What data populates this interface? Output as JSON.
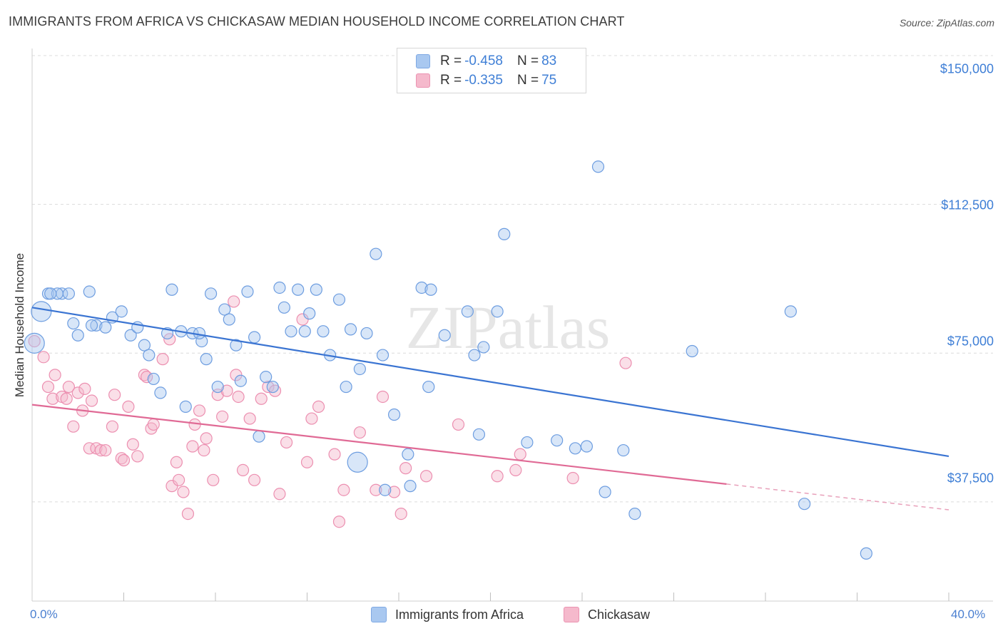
{
  "title": "IMMIGRANTS FROM AFRICA VS CHICKASAW MEDIAN HOUSEHOLD INCOME CORRELATION CHART",
  "source": "Source: ZipAtlas.com",
  "watermark": "ZIPatlas",
  "colors": {
    "blue": "#3a74d2",
    "pink": "#e06a95",
    "blue_fill": "#a9c8f0",
    "pink_fill": "#f5b9cc",
    "axis_text": "#3f7fd6"
  },
  "legend_top": [
    {
      "r_label": "R = ",
      "r_value": "-0.458",
      "n_label": "N = ",
      "n_value": "83",
      "color": "#a9c8f0"
    },
    {
      "r_label": "R = ",
      "r_value": "-0.335",
      "n_label": "N = ",
      "n_value": "75",
      "color": "#f5b9cc"
    }
  ],
  "chart_data": {
    "type": "scatter",
    "ylabel": "Median Household Income",
    "xlim": [
      0,
      40
    ],
    "ylim": [
      12500,
      150000
    ],
    "x_tick_labels": [
      "0.0%",
      "40.0%"
    ],
    "y_tick_labels": [
      "$37,500",
      "$75,000",
      "$112,500",
      "$150,000"
    ],
    "y_tick_values": [
      37500,
      75000,
      112500,
      150000
    ],
    "grid": true,
    "legend_position": "bottom",
    "series": [
      {
        "name": "Immigrants from Africa",
        "color": "#3a74d2",
        "trend": {
          "x": [
            0,
            40
          ],
          "y": [
            86500,
            49000
          ]
        },
        "points": [
          [
            0.1,
            77500
          ],
          [
            0.4,
            85500
          ],
          [
            0.7,
            90000
          ],
          [
            1.3,
            90000
          ],
          [
            1.1,
            90000
          ],
          [
            1.6,
            90000
          ],
          [
            2.5,
            90500
          ],
          [
            1.8,
            82500
          ],
          [
            2.0,
            79500
          ],
          [
            2.8,
            82000
          ],
          [
            3.2,
            81500
          ],
          [
            3.5,
            84000
          ],
          [
            3.9,
            85500
          ],
          [
            4.3,
            79500
          ],
          [
            4.6,
            81500
          ],
          [
            4.9,
            77000
          ],
          [
            5.1,
            74500
          ],
          [
            5.3,
            68500
          ],
          [
            5.6,
            65000
          ],
          [
            5.9,
            80000
          ],
          [
            6.1,
            91000
          ],
          [
            6.5,
            80500
          ],
          [
            6.7,
            61500
          ],
          [
            7.0,
            80000
          ],
          [
            7.4,
            78000
          ],
          [
            7.6,
            73500
          ],
          [
            7.8,
            90000
          ],
          [
            8.1,
            66500
          ],
          [
            8.4,
            86000
          ],
          [
            8.6,
            83500
          ],
          [
            8.9,
            77000
          ],
          [
            9.1,
            68000
          ],
          [
            9.4,
            90500
          ],
          [
            9.7,
            79000
          ],
          [
            9.9,
            54000
          ],
          [
            10.2,
            69000
          ],
          [
            10.5,
            66500
          ],
          [
            10.8,
            91500
          ],
          [
            11.0,
            86500
          ],
          [
            11.3,
            80500
          ],
          [
            11.6,
            91000
          ],
          [
            11.9,
            80500
          ],
          [
            12.1,
            85000
          ],
          [
            12.4,
            91000
          ],
          [
            12.7,
            80500
          ],
          [
            13.0,
            74500
          ],
          [
            13.4,
            88500
          ],
          [
            13.7,
            66500
          ],
          [
            13.9,
            81000
          ],
          [
            14.3,
            71000
          ],
          [
            14.6,
            80000
          ],
          [
            15.0,
            100000
          ],
          [
            15.3,
            74500
          ],
          [
            15.8,
            59500
          ],
          [
            16.4,
            49500
          ],
          [
            16.5,
            41500
          ],
          [
            17.0,
            91500
          ],
          [
            17.4,
            91000
          ],
          [
            17.3,
            66500
          ],
          [
            18.0,
            79500
          ],
          [
            19.0,
            85500
          ],
          [
            19.5,
            54500
          ],
          [
            19.3,
            74500
          ],
          [
            19.7,
            76500
          ],
          [
            20.3,
            85500
          ],
          [
            20.6,
            105000
          ],
          [
            21.6,
            52500
          ],
          [
            22.9,
            53000
          ],
          [
            23.7,
            51000
          ],
          [
            24.2,
            51500
          ],
          [
            24.7,
            122000
          ],
          [
            25.0,
            40000
          ],
          [
            25.8,
            50500
          ],
          [
            26.3,
            34500
          ],
          [
            28.8,
            75500
          ],
          [
            33.1,
            85500
          ],
          [
            33.7,
            37000
          ],
          [
            36.4,
            24500
          ],
          [
            0.8,
            90000
          ],
          [
            14.2,
            47500
          ],
          [
            15.4,
            40500
          ],
          [
            7.3,
            80000
          ],
          [
            2.6,
            82000
          ]
        ]
      },
      {
        "name": "Chickasaw",
        "color": "#e06a95",
        "trend": {
          "x": [
            0,
            30.3
          ],
          "y": [
            62000,
            42000
          ]
        },
        "trend_dashed": {
          "x": [
            30.3,
            40
          ],
          "y": [
            42000,
            35500
          ]
        },
        "points": [
          [
            0.1,
            78000
          ],
          [
            0.5,
            74000
          ],
          [
            0.7,
            66500
          ],
          [
            0.9,
            63500
          ],
          [
            1.0,
            69500
          ],
          [
            1.3,
            64000
          ],
          [
            1.5,
            63500
          ],
          [
            1.6,
            66500
          ],
          [
            1.8,
            56500
          ],
          [
            2.0,
            65000
          ],
          [
            2.2,
            60500
          ],
          [
            2.3,
            66000
          ],
          [
            2.5,
            51000
          ],
          [
            2.6,
            63000
          ],
          [
            2.8,
            51000
          ],
          [
            3.0,
            50500
          ],
          [
            3.2,
            50500
          ],
          [
            3.5,
            56500
          ],
          [
            3.6,
            64500
          ],
          [
            3.9,
            48500
          ],
          [
            4.0,
            48000
          ],
          [
            4.2,
            61500
          ],
          [
            4.4,
            52000
          ],
          [
            4.6,
            49000
          ],
          [
            4.9,
            69500
          ],
          [
            5.0,
            69000
          ],
          [
            5.2,
            56000
          ],
          [
            5.3,
            57000
          ],
          [
            5.7,
            73500
          ],
          [
            6.0,
            78500
          ],
          [
            6.1,
            41500
          ],
          [
            6.3,
            47500
          ],
          [
            6.4,
            43000
          ],
          [
            6.6,
            40000
          ],
          [
            6.8,
            34500
          ],
          [
            7.0,
            51500
          ],
          [
            7.1,
            57000
          ],
          [
            7.3,
            60500
          ],
          [
            7.5,
            50500
          ],
          [
            7.6,
            53500
          ],
          [
            7.9,
            43000
          ],
          [
            8.1,
            64500
          ],
          [
            8.3,
            59000
          ],
          [
            8.5,
            65500
          ],
          [
            8.8,
            88000
          ],
          [
            8.9,
            69500
          ],
          [
            9.2,
            45500
          ],
          [
            9.5,
            58500
          ],
          [
            9.7,
            43000
          ],
          [
            10.0,
            63500
          ],
          [
            10.3,
            66500
          ],
          [
            10.6,
            65500
          ],
          [
            10.8,
            39500
          ],
          [
            11.1,
            52500
          ],
          [
            11.8,
            83500
          ],
          [
            12.0,
            47500
          ],
          [
            12.2,
            58500
          ],
          [
            12.5,
            61500
          ],
          [
            13.2,
            49500
          ],
          [
            13.4,
            32500
          ],
          [
            13.6,
            40500
          ],
          [
            14.3,
            55000
          ],
          [
            15.0,
            40500
          ],
          [
            15.3,
            64000
          ],
          [
            15.8,
            40000
          ],
          [
            16.1,
            34500
          ],
          [
            16.3,
            46000
          ],
          [
            17.2,
            44000
          ],
          [
            18.6,
            57000
          ],
          [
            20.3,
            44000
          ],
          [
            21.1,
            45500
          ],
          [
            21.3,
            49500
          ],
          [
            23.6,
            43500
          ],
          [
            25.9,
            72500
          ],
          [
            9.0,
            64000
          ]
        ]
      }
    ]
  },
  "bottom_legend": [
    "Immigrants from Africa",
    "Chickasaw"
  ]
}
